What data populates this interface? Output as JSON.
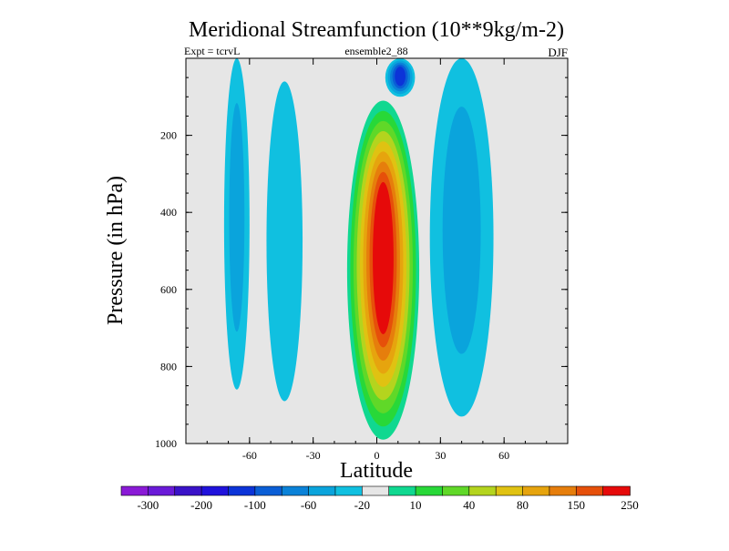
{
  "chart_data": {
    "type": "contour",
    "title": "Meridional Streamfunction (10**9kg/m-2)",
    "left_label": "Expt = tcrvL",
    "center_label": "ensemble2_88",
    "right_label": "DJF",
    "xlabel": "Latitude",
    "ylabel": "Pressure (in hPa)",
    "xlim": [
      -90,
      90
    ],
    "ylim": [
      1000,
      0
    ],
    "x_ticks": [
      -60,
      -30,
      0,
      30,
      60
    ],
    "x_ticklabels": [
      "-60",
      "-30",
      "0",
      "30",
      "60"
    ],
    "y_ticks": [
      200,
      400,
      600,
      800,
      1000
    ],
    "y_ticklabels": [
      "200",
      "400",
      "600",
      "800",
      "1000"
    ],
    "background_color": "#e6e6e6",
    "colorbar": {
      "colors": [
        "#8a1ad6",
        "#6a1ad8",
        "#3a12c8",
        "#2012dc",
        "#0c34d8",
        "#0a5ed6",
        "#0a82d8",
        "#0aa4dc",
        "#10c0e0",
        "#e6e6e6",
        "#10d890",
        "#28d838",
        "#60d828",
        "#b4d41e",
        "#e0c212",
        "#e6a40e",
        "#e67e0c",
        "#e6500a",
        "#e60a0a"
      ],
      "labels": [
        "-300",
        "-200",
        "-100",
        "-60",
        "-20",
        "10",
        "40",
        "80",
        "150",
        "250"
      ]
    },
    "features": [
      {
        "name": "hadley-cell-core",
        "min_x": -14,
        "min_y": 110,
        "max_x": 20,
        "max_y": 990,
        "level": 18
      },
      {
        "name": "ferrel-cell-south",
        "min_x": -52,
        "min_y": 60,
        "max_x": -35,
        "max_y": 890,
        "level": 8
      },
      {
        "name": "ferrel-cell-north",
        "min_x": 25,
        "min_y": 0,
        "max_x": 55,
        "max_y": 930,
        "level": 7
      },
      {
        "name": "polar-cell-south",
        "min_x": -72,
        "min_y": 0,
        "max_x": -60,
        "max_y": 860,
        "level": 7
      },
      {
        "name": "upper-branch-north",
        "min_x": 4,
        "min_y": 0,
        "max_x": 18,
        "max_y": 100,
        "level": 4
      }
    ]
  }
}
